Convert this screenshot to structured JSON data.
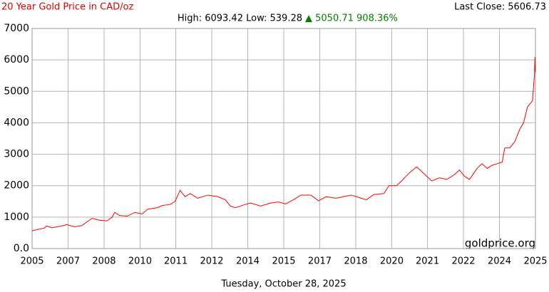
{
  "chart_data": {
    "type": "line",
    "title": "20 Year Gold Price in CAD/oz",
    "last_close": "Last Close: 5606.73",
    "stats": "High: 6093.42 Low: 539.28",
    "change": "▲ 5050.71 908.36%",
    "watermark": "goldprice.org",
    "date": "Tuesday, October 28, 2025",
    "grid": true,
    "xlim": [
      2005.82,
      2025.82
    ],
    "ylim": [
      0,
      7000
    ],
    "yticks": [
      {
        "value": 0,
        "label": "0.0"
      },
      1000,
      2000,
      3000,
      4000,
      5000,
      6000,
      7000
    ],
    "xticks": [
      {
        "value": 2005.82,
        "label": "2005"
      },
      {
        "value": 2007.25,
        "label": "2007"
      },
      {
        "value": 2008.68,
        "label": "2008"
      },
      {
        "value": 2010.11,
        "label": "2010"
      },
      {
        "value": 2011.53,
        "label": "2011"
      },
      {
        "value": 2012.96,
        "label": "2012"
      },
      {
        "value": 2014.39,
        "label": "2014"
      },
      {
        "value": 2015.82,
        "label": "2015"
      },
      {
        "value": 2017.25,
        "label": "2017"
      },
      {
        "value": 2018.68,
        "label": "2018"
      },
      {
        "value": 2020.11,
        "label": "2020"
      },
      {
        "value": 2021.53,
        "label": "2021"
      },
      {
        "value": 2022.96,
        "label": "2022"
      },
      {
        "value": 2024.39,
        "label": "2024"
      },
      {
        "value": 2025.82,
        "label": "2025"
      }
    ],
    "series": [
      {
        "name": "Gold CAD/oz",
        "color": "#ff0000",
        "x": [
          2005.82,
          2006.0,
          2006.3,
          2006.4,
          2006.6,
          2007.0,
          2007.2,
          2007.5,
          2007.8,
          2008.0,
          2008.2,
          2008.5,
          2008.8,
          2009.0,
          2009.1,
          2009.3,
          2009.6,
          2009.9,
          2010.2,
          2010.4,
          2010.8,
          2011.0,
          2011.3,
          2011.5,
          2011.7,
          2011.9,
          2012.1,
          2012.4,
          2012.8,
          2013.2,
          2013.5,
          2013.7,
          2013.9,
          2014.2,
          2014.5,
          2014.9,
          2015.3,
          2015.6,
          2015.9,
          2016.2,
          2016.5,
          2016.9,
          2017.2,
          2017.5,
          2017.9,
          2018.2,
          2018.5,
          2018.9,
          2019.1,
          2019.4,
          2019.8,
          2020.0,
          2020.3,
          2020.5,
          2020.8,
          2021.1,
          2021.3,
          2021.5,
          2021.7,
          2022.0,
          2022.3,
          2022.6,
          2022.8,
          2023.0,
          2023.2,
          2023.5,
          2023.7,
          2023.9,
          2024.1,
          2024.3,
          2024.5,
          2024.6,
          2024.8,
          2025.0,
          2025.2,
          2025.35,
          2025.5,
          2025.6,
          2025.7,
          2025.78,
          2025.8,
          2025.82
        ],
        "values": [
          560,
          600,
          650,
          720,
          660,
          720,
          760,
          690,
          730,
          850,
          960,
          900,
          880,
          1000,
          1150,
          1050,
          1030,
          1150,
          1100,
          1250,
          1300,
          1370,
          1400,
          1500,
          1850,
          1650,
          1750,
          1600,
          1700,
          1650,
          1550,
          1350,
          1300,
          1380,
          1450,
          1350,
          1450,
          1480,
          1420,
          1550,
          1700,
          1700,
          1520,
          1650,
          1600,
          1650,
          1700,
          1600,
          1550,
          1720,
          1750,
          2000,
          2000,
          2150,
          2400,
          2600,
          2450,
          2300,
          2150,
          2250,
          2200,
          2350,
          2500,
          2300,
          2200,
          2550,
          2700,
          2550,
          2650,
          2700,
          2750,
          3200,
          3200,
          3400,
          3800,
          4000,
          4500,
          4600,
          4700,
          5500,
          6093,
          5607
        ]
      }
    ]
  }
}
